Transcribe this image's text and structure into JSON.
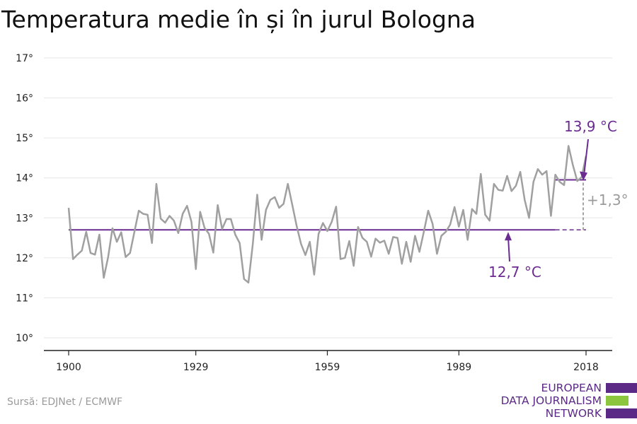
{
  "title": "Temperatura medie în și în jurul Bologna",
  "source": "Sursă: EDJNet / ECMWF",
  "logo": {
    "lines": [
      "EUROPEAN",
      "DATA JOURNALISM",
      "NETWORK"
    ],
    "colors": [
      "#5b2a86",
      "#8cc63f",
      "#5b2a86"
    ]
  },
  "colors": {
    "line": "#a0a0a0",
    "baseline": "#6a2c91",
    "change": "#9a9a9a",
    "grid": "#e6e6e6",
    "axis": "#222222"
  },
  "chart_data": {
    "type": "line",
    "title": "Temperatura medie în și în jurul Bologna",
    "xlabel": "",
    "ylabel": "",
    "xlim": [
      1900,
      2018
    ],
    "ylim": [
      10,
      17
    ],
    "x_ticks": [
      1900,
      1929,
      1959,
      1989,
      2018
    ],
    "y_ticks": [
      10,
      11,
      12,
      13,
      14,
      15,
      16,
      17
    ],
    "y_tick_labels": [
      "10°",
      "11°",
      "12°",
      "13°",
      "14°",
      "15°",
      "16°",
      "17°"
    ],
    "grid": true,
    "series": [
      {
        "x": [
          1900,
          1901,
          1902,
          1903,
          1904,
          1905,
          1906,
          1907,
          1908,
          1909,
          1910,
          1911,
          1912,
          1913,
          1914,
          1915,
          1916,
          1917,
          1918,
          1919,
          1920,
          1921,
          1922,
          1923,
          1924,
          1925,
          1926,
          1927,
          1928,
          1929,
          1930,
          1931,
          1932,
          1933,
          1934,
          1935,
          1936,
          1937,
          1938,
          1939,
          1940,
          1941,
          1942,
          1943,
          1944,
          1945,
          1946,
          1947,
          1948,
          1949,
          1950,
          1951,
          1952,
          1953,
          1954,
          1955,
          1956,
          1957,
          1958,
          1959,
          1960,
          1961,
          1962,
          1963,
          1964,
          1965,
          1966,
          1967,
          1968,
          1969,
          1970,
          1971,
          1972,
          1973,
          1974,
          1975,
          1976,
          1977,
          1978,
          1979,
          1980,
          1981,
          1982,
          1983,
          1984,
          1985,
          1986,
          1987,
          1988,
          1989,
          1990,
          1991,
          1992,
          1993,
          1994,
          1995,
          1996,
          1997,
          1998,
          1999,
          2000,
          2001,
          2002,
          2003,
          2004,
          2005,
          2006,
          2007,
          2008,
          2009,
          2010,
          2011,
          2012,
          2013,
          2014,
          2015,
          2016,
          2017,
          2018
        ],
        "values": [
          13.25,
          11.97,
          12.08,
          12.18,
          12.65,
          12.12,
          12.08,
          12.58,
          11.5,
          12.02,
          12.74,
          12.4,
          12.64,
          12.02,
          12.12,
          12.65,
          13.18,
          13.1,
          13.08,
          12.37,
          13.85,
          12.98,
          12.88,
          13.05,
          12.93,
          12.62,
          13.1,
          13.3,
          12.9,
          11.72,
          13.15,
          12.75,
          12.6,
          12.13,
          13.32,
          12.72,
          12.97,
          12.97,
          12.58,
          12.37,
          11.47,
          11.38,
          12.35,
          13.58,
          12.45,
          13.2,
          13.45,
          13.52,
          13.25,
          13.35,
          13.85,
          13.33,
          12.8,
          12.35,
          12.07,
          12.4,
          11.58,
          12.6,
          12.87,
          12.67,
          12.9,
          13.28,
          11.97,
          12.0,
          12.42,
          11.8,
          12.77,
          12.5,
          12.4,
          12.03,
          12.48,
          12.38,
          12.43,
          12.1,
          12.52,
          12.5,
          11.85,
          12.4,
          11.9,
          12.55,
          12.15,
          12.65,
          13.18,
          12.85,
          12.1,
          12.55,
          12.65,
          12.83,
          13.27,
          12.78,
          13.2,
          12.45,
          13.22,
          13.1,
          14.1,
          13.08,
          12.93,
          13.85,
          13.7,
          13.68,
          14.05,
          13.67,
          13.8,
          14.15,
          13.45,
          13.0,
          13.9,
          14.22,
          14.08,
          14.17,
          13.05,
          14.08,
          13.9,
          13.82,
          14.8,
          14.32,
          13.92,
          14.02,
          14.55
        ]
      }
    ],
    "baseline": {
      "value": 12.7,
      "from": 1900,
      "to": 2011,
      "dashed_to": 2018
    },
    "recent": {
      "value": 13.95,
      "from": 2011,
      "to": 2018
    },
    "annotations": {
      "recent_label": "13,9 °C",
      "baseline_label": "12,7 °C",
      "change_label": "+1,3°"
    }
  }
}
